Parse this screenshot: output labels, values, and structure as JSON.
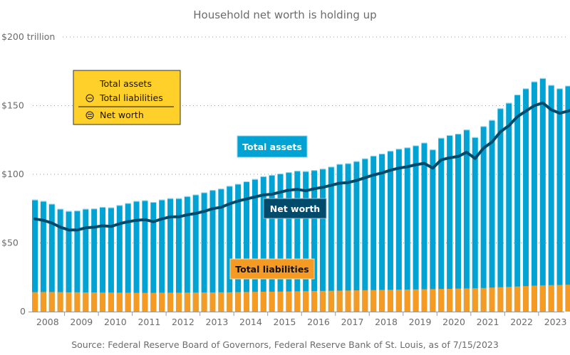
{
  "chart_data": {
    "type": "bar",
    "title": "Household net worth is holding up",
    "xlabel": "",
    "ylabel": "",
    "ylim": [
      0,
      200
    ],
    "y_ticks": [
      {
        "value": 0,
        "label": "0"
      },
      {
        "value": 50,
        "label": "$50"
      },
      {
        "value": 100,
        "label": "$100"
      },
      {
        "value": 150,
        "label": "$150"
      },
      {
        "value": 200,
        "label": "$200 trillion"
      }
    ],
    "x_ticks": [
      "2008",
      "2009",
      "2010",
      "2011",
      "2012",
      "2013",
      "2014",
      "2015",
      "2016",
      "2017",
      "2018",
      "2019",
      "2020",
      "2021",
      "2022",
      "2023"
    ],
    "grid": true,
    "frequency": "quarterly",
    "start": "2008 Q1",
    "end": "2023 Q1",
    "series": [
      {
        "name": "Total assets",
        "type": "bar",
        "color": "#00a3d4",
        "values": [
          81.5,
          80.5,
          78.5,
          74.8,
          73.2,
          73.5,
          74.8,
          75.0,
          76.2,
          75.8,
          77.5,
          79.0,
          80.5,
          81.0,
          79.8,
          81.5,
          82.5,
          82.5,
          84.0,
          85.2,
          86.8,
          88.5,
          89.5,
          91.5,
          93.0,
          94.8,
          96.5,
          98.5,
          99.5,
          100.5,
          101.5,
          102.5,
          102.2,
          103.0,
          104.0,
          105.5,
          107.5,
          108.0,
          109.5,
          111.5,
          113.5,
          115.0,
          117.0,
          118.5,
          119.5,
          121.0,
          123.0,
          118.0,
          126.5,
          128.5,
          129.5,
          132.5,
          127.0,
          135.0,
          139.5,
          148.0,
          152.0,
          158.0,
          162.5,
          167.5,
          170.0,
          165.0,
          162.5,
          164.5,
          167.0
        ],
        "values_note": "trillions of USD, estimated from pixels"
      },
      {
        "name": "Total liabilities",
        "type": "bar",
        "color": "#f59b23",
        "values": [
          14.2,
          14.3,
          14.3,
          14.2,
          14.1,
          14.1,
          14.0,
          14.0,
          13.9,
          13.9,
          13.8,
          13.8,
          13.7,
          13.7,
          13.7,
          13.8,
          13.8,
          13.8,
          13.9,
          13.9,
          14.0,
          14.0,
          14.1,
          14.1,
          14.2,
          14.3,
          14.4,
          14.5,
          14.5,
          14.6,
          14.7,
          14.8,
          14.9,
          15.0,
          15.1,
          15.2,
          15.3,
          15.4,
          15.5,
          15.6,
          15.7,
          15.8,
          15.9,
          16.0,
          16.1,
          16.2,
          16.3,
          16.4,
          16.5,
          16.6,
          16.8,
          16.9,
          17.0,
          17.2,
          17.5,
          17.8,
          18.0,
          18.3,
          18.6,
          18.9,
          19.1,
          19.3,
          19.4,
          19.6,
          19.7
        ],
        "values_note": "trillions of USD, estimated from pixels"
      },
      {
        "name": "Net worth",
        "type": "line",
        "color": "#004b6b",
        "values": [
          67.5,
          66.5,
          64.5,
          61.5,
          59.5,
          59.5,
          61.0,
          61.5,
          62.5,
          62.0,
          64.0,
          65.5,
          66.5,
          67.0,
          65.5,
          67.5,
          69.0,
          69.0,
          70.5,
          71.5,
          73.0,
          75.0,
          76.0,
          78.5,
          80.5,
          82.0,
          83.5,
          85.0,
          85.5,
          87.0,
          88.5,
          89.0,
          88.0,
          89.5,
          90.5,
          92.0,
          93.5,
          94.0,
          95.5,
          97.5,
          99.5,
          101.0,
          103.0,
          104.5,
          105.5,
          107.0,
          108.0,
          104.5,
          110.5,
          112.0,
          113.0,
          116.0,
          111.5,
          119.0,
          123.5,
          131.0,
          135.5,
          142.0,
          146.0,
          150.0,
          152.0,
          147.0,
          144.5,
          146.0,
          148.5
        ],
        "values_note": "trillions of USD, estimated from pixels"
      }
    ],
    "annotations": [
      {
        "text": "Total assets",
        "series": "Total assets",
        "bg": "#00a3d4",
        "fg": "#ffffff"
      },
      {
        "text": "Net worth",
        "series": "Net worth",
        "bg": "#004b6b",
        "fg": "#ffffff"
      },
      {
        "text": "Total liabilities",
        "series": "Total liabilities",
        "bg": "#f59b23",
        "fg": "#111111"
      }
    ],
    "legend": {
      "placement": "top-left",
      "bg": "#ffd02a",
      "lines": [
        {
          "symbol": "",
          "text": "Total assets"
        },
        {
          "symbol": "minus-circle",
          "text": "Total liabilities"
        },
        {
          "symbol": "equals-circle",
          "text": "Net worth"
        }
      ]
    },
    "source": "Source: Federal Reserve Board of Governors, Federal Reserve Bank of St. Louis, as of 7/15/2023"
  }
}
